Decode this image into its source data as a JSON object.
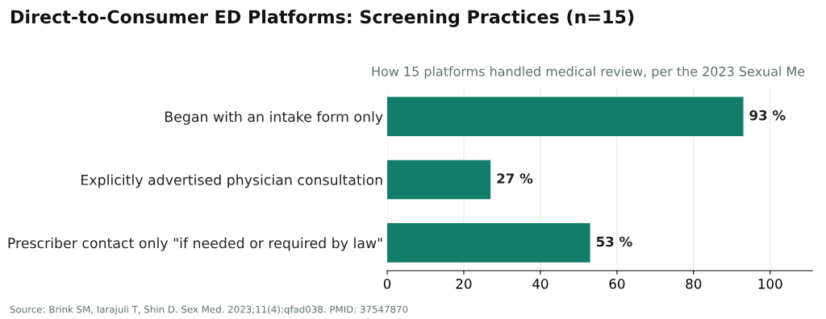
{
  "chart_data": {
    "type": "bar",
    "orientation": "horizontal",
    "title": "Direct-to-Consumer ED Platforms: Screening Practices (n=15)",
    "subtitle": "How 15 platforms handled medical review, per the 2023 Sexual Me",
    "categories": [
      "Began with an intake form only",
      "Explicitly advertised physician consultation",
      "Prescriber contact only \"if needed or required by law\""
    ],
    "values": [
      93,
      27,
      53
    ],
    "value_labels": [
      "93 %",
      "27 %",
      "53 %"
    ],
    "color": "#127e69",
    "xlim": [
      0,
      111
    ],
    "xticks": [
      0,
      20,
      40,
      60,
      80,
      100
    ],
    "grid": "x",
    "annotations": [
      "Source: Brink SM, Iarajuli T, Shin D. Sex Med. 2023;11(4):qfad038. PMID: 37547870"
    ]
  }
}
